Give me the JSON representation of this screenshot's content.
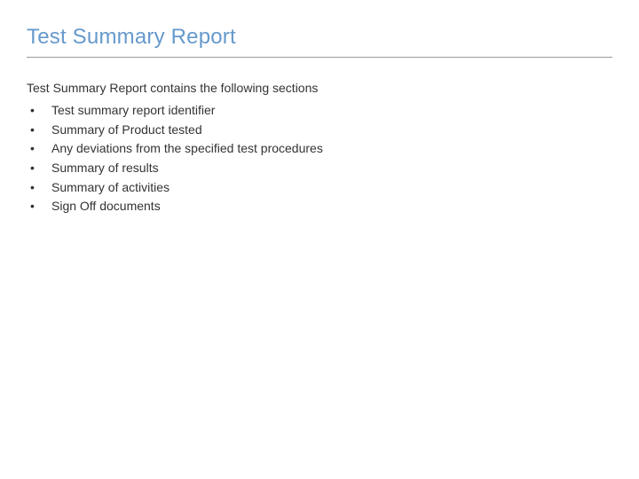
{
  "title": "Test Summary Report",
  "intro": "Test Summary Report  contains the following sections",
  "bullets": [
    "Test summary report identifier",
    "Summary of Product tested",
    "Any deviations from the specified test procedures",
    "Summary of results",
    "Summary of activities",
    "Sign Off documents"
  ],
  "colors": {
    "title_color": "#6699cc",
    "text_color": "#333333",
    "divider_color": "#999999",
    "background": "#ffffff"
  },
  "typography": {
    "title_fontsize": 24,
    "body_fontsize": 14,
    "font_family": "Arial"
  }
}
